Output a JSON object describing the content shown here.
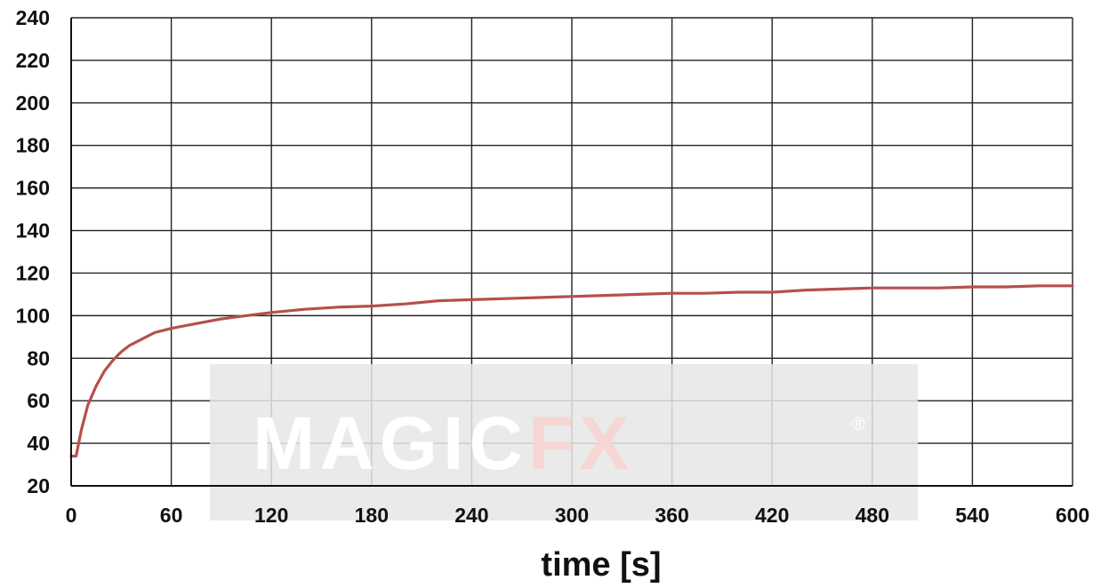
{
  "chart_data": {
    "type": "line",
    "xlabel": "time [s]",
    "ylabel": "",
    "xlim": [
      0,
      600
    ],
    "ylim": [
      20,
      240
    ],
    "x_ticks": [
      0,
      60,
      120,
      180,
      240,
      300,
      360,
      420,
      480,
      540,
      600
    ],
    "y_ticks": [
      20,
      40,
      60,
      80,
      100,
      120,
      140,
      160,
      180,
      200,
      220,
      240
    ],
    "grid": true,
    "series": [
      {
        "color": "#b5504b",
        "x": [
          0,
          3,
          6,
          10,
          15,
          20,
          25,
          30,
          35,
          40,
          45,
          50,
          60,
          70,
          80,
          90,
          100,
          110,
          120,
          140,
          160,
          180,
          200,
          220,
          240,
          260,
          280,
          300,
          320,
          340,
          360,
          380,
          400,
          420,
          440,
          460,
          480,
          500,
          520,
          540,
          560,
          580,
          600
        ],
        "y": [
          34,
          34,
          46,
          58,
          67,
          74,
          79,
          83,
          86,
          88,
          90,
          92,
          94,
          95.5,
          97,
          98.5,
          99.5,
          100.5,
          101.5,
          103,
          104,
          104.5,
          105.5,
          107,
          107.5,
          108,
          108.5,
          109,
          109.5,
          110,
          110.5,
          110.5,
          111,
          111,
          112,
          112.5,
          113,
          113,
          113,
          113.5,
          113.5,
          114,
          114
        ]
      }
    ]
  },
  "watermark": {
    "text_main": "MAGIC",
    "text_accent": "FX",
    "registered": "®",
    "accent_color": "#f6d6d4",
    "text_color": "#ffffff",
    "band_color": "#e6e6e6"
  }
}
